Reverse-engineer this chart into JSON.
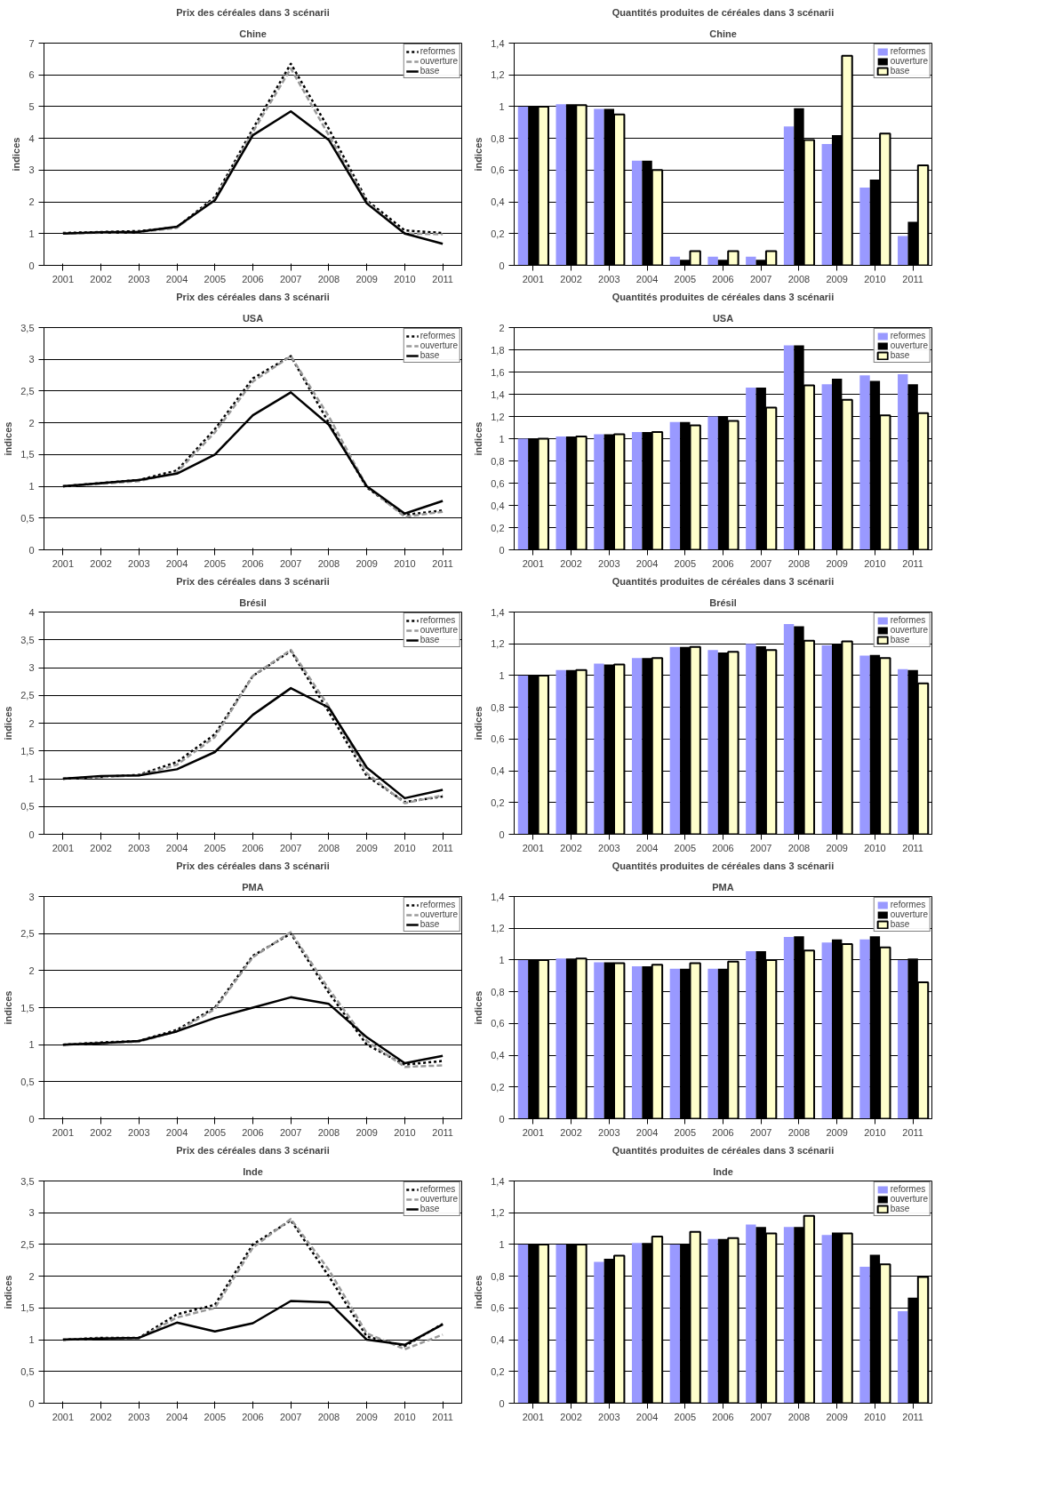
{
  "chart_data": [
    {
      "type": "line",
      "title": "Prix des céréales dans 3 scénarii",
      "subtitle": "Chine",
      "ylabel": "indices",
      "categories": [
        "2001",
        "2002",
        "2003",
        "2004",
        "2005",
        "2006",
        "2007",
        "2008",
        "2009",
        "2010",
        "2011"
      ],
      "ylim": [
        0,
        7
      ],
      "yticks": [
        0,
        1,
        2,
        3,
        4,
        5,
        6,
        7
      ],
      "grid": "y",
      "legend": "top right",
      "series": [
        {
          "name": "reformes",
          "color": "#000000",
          "line_style": "dotted",
          "values": [
            1.02,
            1.05,
            1.08,
            1.2,
            2.15,
            4.3,
            6.35,
            4.3,
            2.05,
            1.1,
            1.02
          ]
        },
        {
          "name": "ouverture",
          "color": "#999999",
          "line_style": "dashed",
          "values": [
            1,
            1.03,
            1.05,
            1.18,
            2.1,
            4.2,
            6.2,
            4.1,
            2.0,
            1.0,
            0.98
          ]
        },
        {
          "name": "base",
          "color": "#000000",
          "line_style": "solid",
          "values": [
            1,
            1.04,
            1.06,
            1.22,
            2.05,
            4.1,
            4.85,
            3.95,
            1.95,
            1.0,
            0.68
          ]
        }
      ]
    },
    {
      "type": "bar",
      "title": "Quantités produites de céréales dans 3 scénarii",
      "subtitle": "Chine",
      "ylabel": "indices",
      "categories": [
        "2001",
        "2002",
        "2003",
        "2004",
        "2005",
        "2006",
        "2007",
        "2008",
        "2009",
        "2010",
        "2011"
      ],
      "ylim": [
        0,
        1.4
      ],
      "yticks": [
        0,
        {
          "value": 0.2,
          "label": "0,2"
        },
        {
          "value": 0.4,
          "label": "0,4"
        },
        {
          "value": 0.6,
          "label": "0,6"
        },
        {
          "value": 0.8,
          "label": "0,8"
        },
        1,
        {
          "value": 1.2,
          "label": "1,2"
        },
        {
          "value": 1.4,
          "label": "1,4"
        }
      ],
      "grid": "y",
      "legend": "top right",
      "series": [
        {
          "name": "reformes",
          "color": "#9999ff",
          "values": [
            1,
            1.015,
            0.985,
            0.66,
            0.055,
            0.055,
            0.055,
            0.875,
            0.765,
            0.49,
            0.185
          ]
        },
        {
          "name": "ouverture",
          "color": "#000000",
          "values": [
            1,
            1.015,
            0.985,
            0.66,
            0.035,
            0.035,
            0.035,
            0.99,
            0.82,
            0.54,
            0.275
          ]
        },
        {
          "name": "base",
          "color": "#ffffcc",
          "values": [
            1,
            1.01,
            0.95,
            0.6,
            0.09,
            0.09,
            0.09,
            0.79,
            1.32,
            0.83,
            0.63
          ]
        }
      ]
    },
    {
      "type": "line",
      "title": "Prix des céréales dans 3 scénarii",
      "subtitle": "USA",
      "ylabel": "indices",
      "categories": [
        "2001",
        "2002",
        "2003",
        "2004",
        "2005",
        "2006",
        "2007",
        "2008",
        "2009",
        "2010",
        "2011"
      ],
      "ylim": [
        0,
        3.5
      ],
      "yticks": [
        0,
        {
          "value": 0.5,
          "label": "0,5"
        },
        1,
        {
          "value": 1.5,
          "label": "1,5"
        },
        2,
        {
          "value": 2.5,
          "label": "2,5"
        },
        3,
        {
          "value": 3.5,
          "label": "3,5"
        }
      ],
      "grid": "y",
      "legend": "top right",
      "series": [
        {
          "name": "reformes",
          "color": "#000000",
          "line_style": "dotted",
          "values": [
            1,
            1.05,
            1.1,
            1.25,
            1.9,
            2.7,
            3.05,
            2.0,
            0.98,
            0.55,
            0.62
          ]
        },
        {
          "name": "ouverture",
          "color": "#999999",
          "line_style": "dashed",
          "values": [
            1,
            1.04,
            1.08,
            1.22,
            1.85,
            2.65,
            3.05,
            2.1,
            1.0,
            0.52,
            0.6
          ]
        },
        {
          "name": "base",
          "color": "#000000",
          "line_style": "solid",
          "values": [
            1,
            1.05,
            1.1,
            1.2,
            1.5,
            2.12,
            2.48,
            1.97,
            1.0,
            0.57,
            0.77
          ]
        }
      ]
    },
    {
      "type": "bar",
      "title": "Quantités produites de céréales dans 3 scénarii",
      "subtitle": "USA",
      "ylabel": "indices",
      "categories": [
        "2001",
        "2002",
        "2003",
        "2004",
        "2005",
        "2006",
        "2007",
        "2008",
        "2009",
        "2010",
        "2011"
      ],
      "ylim": [
        0,
        2
      ],
      "yticks": [
        0,
        {
          "value": 0.2,
          "label": "0,2"
        },
        {
          "value": 0.4,
          "label": "0,4"
        },
        {
          "value": 0.6,
          "label": "0,6"
        },
        {
          "value": 0.8,
          "label": "0,8"
        },
        1,
        {
          "value": 1.2,
          "label": "1,2"
        },
        {
          "value": 1.4,
          "label": "1,4"
        },
        {
          "value": 1.6,
          "label": "1,6"
        },
        {
          "value": 1.8,
          "label": "1,8"
        },
        2
      ],
      "grid": "y",
      "legend": "top right",
      "series": [
        {
          "name": "reformes",
          "color": "#9999ff",
          "values": [
            1,
            1.02,
            1.04,
            1.06,
            1.15,
            1.2,
            1.46,
            1.84,
            1.49,
            1.57,
            1.58
          ]
        },
        {
          "name": "ouverture",
          "color": "#000000",
          "values": [
            1,
            1.02,
            1.04,
            1.06,
            1.15,
            1.2,
            1.46,
            1.84,
            1.54,
            1.52,
            1.49
          ]
        },
        {
          "name": "base",
          "color": "#ffffcc",
          "values": [
            1,
            1.02,
            1.04,
            1.06,
            1.12,
            1.16,
            1.28,
            1.48,
            1.35,
            1.21,
            1.23
          ]
        }
      ]
    },
    {
      "type": "line",
      "title": "Prix des céréales dans 3 scénarii",
      "subtitle": "Brésil",
      "ylabel": "indices",
      "categories": [
        "2001",
        "2002",
        "2003",
        "2004",
        "2005",
        "2006",
        "2007",
        "2008",
        "2009",
        "2010",
        "2011"
      ],
      "ylim": [
        0,
        4
      ],
      "yticks": [
        0,
        {
          "value": 0.5,
          "label": "0,5"
        },
        1,
        {
          "value": 1.5,
          "label": "1,5"
        },
        2,
        {
          "value": 2.5,
          "label": "2,5"
        },
        3,
        {
          "value": 3.5,
          "label": "3,5"
        },
        4
      ],
      "grid": "y",
      "legend": "top right",
      "series": [
        {
          "name": "reformes",
          "color": "#000000",
          "line_style": "dotted",
          "values": [
            1,
            1.03,
            1.07,
            1.3,
            1.8,
            2.85,
            3.3,
            2.2,
            1.05,
            0.58,
            0.68
          ]
        },
        {
          "name": "ouverture",
          "color": "#999999",
          "line_style": "dashed",
          "values": [
            1,
            1.03,
            1.06,
            1.25,
            1.75,
            2.85,
            3.32,
            2.3,
            1.1,
            0.56,
            0.7
          ]
        },
        {
          "name": "base",
          "color": "#000000",
          "line_style": "solid",
          "values": [
            1,
            1.05,
            1.06,
            1.17,
            1.48,
            2.15,
            2.63,
            2.28,
            1.2,
            0.65,
            0.8
          ]
        }
      ]
    },
    {
      "type": "bar",
      "title": "Quantités produites de céréales dans 3 scénarii",
      "subtitle": "Brésil",
      "ylabel": "indices",
      "categories": [
        "2001",
        "2002",
        "2003",
        "2004",
        "2005",
        "2006",
        "2007",
        "2008",
        "2009",
        "2010",
        "2011"
      ],
      "ylim": [
        0,
        1.4
      ],
      "yticks": [
        0,
        {
          "value": 0.2,
          "label": "0,2"
        },
        {
          "value": 0.4,
          "label": "0,4"
        },
        {
          "value": 0.6,
          "label": "0,6"
        },
        {
          "value": 0.8,
          "label": "0,8"
        },
        1,
        {
          "value": 1.2,
          "label": "1,2"
        },
        {
          "value": 1.4,
          "label": "1,4"
        }
      ],
      "grid": "y",
      "legend": "top right",
      "series": [
        {
          "name": "reformes",
          "color": "#9999ff",
          "values": [
            1,
            1.035,
            1.075,
            1.11,
            1.18,
            1.16,
            1.2,
            1.325,
            1.19,
            1.125,
            1.04
          ]
        },
        {
          "name": "ouverture",
          "color": "#000000",
          "values": [
            1,
            1.035,
            1.07,
            1.11,
            1.18,
            1.145,
            1.185,
            1.31,
            1.2,
            1.13,
            1.035
          ]
        },
        {
          "name": "base",
          "color": "#ffffcc",
          "values": [
            1,
            1.035,
            1.07,
            1.11,
            1.18,
            1.15,
            1.16,
            1.22,
            1.215,
            1.11,
            0.95
          ]
        }
      ]
    },
    {
      "type": "line",
      "title": "Prix des céréales dans 3 scénarii",
      "subtitle": "PMA",
      "ylabel": "indices",
      "categories": [
        "2001",
        "2002",
        "2003",
        "2004",
        "2005",
        "2006",
        "2007",
        "2008",
        "2009",
        "2010",
        "2011"
      ],
      "ylim": [
        0,
        3
      ],
      "yticks": [
        0,
        {
          "value": 0.5,
          "label": "0,5"
        },
        1,
        {
          "value": 1.5,
          "label": "1,5"
        },
        2,
        {
          "value": 2.5,
          "label": "2,5"
        },
        3
      ],
      "grid": "y",
      "legend": "top right",
      "series": [
        {
          "name": "reformes",
          "color": "#000000",
          "line_style": "dotted",
          "values": [
            1,
            1.03,
            1.05,
            1.2,
            1.5,
            2.2,
            2.5,
            1.7,
            1.0,
            0.73,
            0.78
          ]
        },
        {
          "name": "ouverture",
          "color": "#999999",
          "line_style": "dashed",
          "values": [
            1,
            1.02,
            1.04,
            1.18,
            1.48,
            2.18,
            2.52,
            1.75,
            1.05,
            0.7,
            0.72
          ]
        },
        {
          "name": "base",
          "color": "#000000",
          "line_style": "solid",
          "values": [
            1,
            1.02,
            1.05,
            1.18,
            1.36,
            1.5,
            1.64,
            1.55,
            1.1,
            0.75,
            0.85
          ]
        }
      ]
    },
    {
      "type": "bar",
      "title": "Quantités produites de céréales dans 3 scénarii",
      "subtitle": "PMA",
      "ylabel": "indices",
      "categories": [
        "2001",
        "2002",
        "2003",
        "2004",
        "2005",
        "2006",
        "2007",
        "2008",
        "2009",
        "2010",
        "2011"
      ],
      "ylim": [
        0,
        1.4
      ],
      "yticks": [
        0,
        {
          "value": 0.2,
          "label": "0,2"
        },
        {
          "value": 0.4,
          "label": "0,4"
        },
        {
          "value": 0.6,
          "label": "0,6"
        },
        {
          "value": 0.8,
          "label": "0,8"
        },
        1,
        {
          "value": 1.2,
          "label": "1,2"
        },
        {
          "value": 1.4,
          "label": "1,4"
        }
      ],
      "grid": "y",
      "legend": "top right",
      "series": [
        {
          "name": "reformes",
          "color": "#9999ff",
          "values": [
            1,
            1.01,
            0.985,
            0.96,
            0.945,
            0.945,
            1.055,
            1.145,
            1.11,
            1.13,
            1.0
          ]
        },
        {
          "name": "ouverture",
          "color": "#000000",
          "values": [
            1,
            1.01,
            0.985,
            0.96,
            0.945,
            0.945,
            1.055,
            1.15,
            1.13,
            1.15,
            1.01
          ]
        },
        {
          "name": "base",
          "color": "#ffffcc",
          "values": [
            1,
            1.01,
            0.98,
            0.97,
            0.98,
            0.99,
            1.0,
            1.06,
            1.1,
            1.08,
            0.86
          ]
        }
      ]
    },
    {
      "type": "line",
      "title": "Prix des céréales dans 3 scénarii",
      "subtitle": "Inde",
      "ylabel": "indices",
      "categories": [
        "2001",
        "2002",
        "2003",
        "2004",
        "2005",
        "2006",
        "2007",
        "2008",
        "2009",
        "2010",
        "2011"
      ],
      "ylim": [
        0,
        3.5
      ],
      "yticks": [
        0,
        {
          "value": 0.5,
          "label": "0,5"
        },
        1,
        {
          "value": 1.5,
          "label": "1,5"
        },
        2,
        {
          "value": 2.5,
          "label": "2,5"
        },
        3,
        {
          "value": 3.5,
          "label": "3,5"
        }
      ],
      "grid": "y",
      "legend": "top right",
      "series": [
        {
          "name": "reformes",
          "color": "#000000",
          "line_style": "dotted",
          "values": [
            1,
            1.03,
            1.03,
            1.4,
            1.55,
            2.5,
            2.88,
            2.0,
            1.05,
            0.9,
            1.25
          ]
        },
        {
          "name": "ouverture",
          "color": "#999999",
          "line_style": "dashed",
          "values": [
            1,
            1.02,
            1.02,
            1.35,
            1.5,
            2.45,
            2.9,
            2.1,
            1.1,
            0.85,
            1.08
          ]
        },
        {
          "name": "base",
          "color": "#000000",
          "line_style": "solid",
          "values": [
            1,
            1.02,
            1.03,
            1.27,
            1.13,
            1.26,
            1.61,
            1.59,
            1.0,
            0.92,
            1.24
          ]
        }
      ]
    },
    {
      "type": "bar",
      "title": "Quantités produites de céréales dans 3 scénarii",
      "subtitle": "Inde",
      "ylabel": "indices",
      "categories": [
        "2001",
        "2002",
        "2003",
        "2004",
        "2005",
        "2006",
        "2007",
        "2008",
        "2009",
        "2010",
        "2011"
      ],
      "ylim": [
        0,
        1.4
      ],
      "yticks": [
        0,
        {
          "value": 0.2,
          "label": "0,2"
        },
        {
          "value": 0.4,
          "label": "0,4"
        },
        {
          "value": 0.6,
          "label": "0,6"
        },
        {
          "value": 0.8,
          "label": "0,8"
        },
        1,
        {
          "value": 1.2,
          "label": "1,2"
        },
        {
          "value": 1.4,
          "label": "1,4"
        }
      ],
      "grid": "y",
      "legend": "top right",
      "series": [
        {
          "name": "reformes",
          "color": "#9999ff",
          "values": [
            1,
            1,
            0.89,
            1.01,
            1.0,
            1.035,
            1.125,
            1.11,
            1.06,
            0.86,
            0.58
          ]
        },
        {
          "name": "ouverture",
          "color": "#000000",
          "values": [
            1,
            1,
            0.91,
            1.01,
            1.0,
            1.035,
            1.11,
            1.11,
            1.075,
            0.935,
            0.665
          ]
        },
        {
          "name": "base",
          "color": "#ffffcc",
          "values": [
            1,
            1,
            0.93,
            1.05,
            1.08,
            1.04,
            1.07,
            1.18,
            1.07,
            0.875,
            0.795
          ]
        }
      ]
    }
  ]
}
